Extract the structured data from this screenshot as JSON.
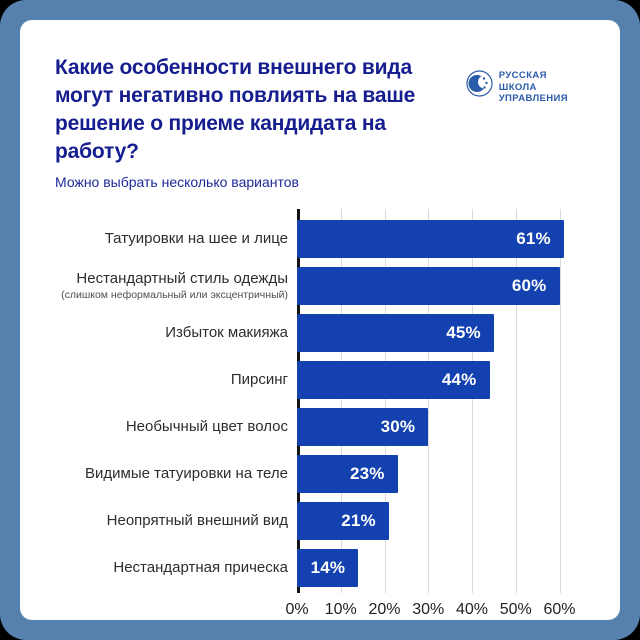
{
  "frame": {
    "border_color": "#5680ad",
    "card_color": "#ffffff"
  },
  "header": {
    "title_lines": [
      "Какие особенности внешнего вида",
      "могут негативно повлиять на ваше",
      "решение о приеме кандидата на работу?"
    ],
    "subtitle": "Можно выбрать несколько вариантов",
    "title_color": "#161e8f",
    "logo": {
      "lines": [
        "РУССКАЯ",
        "ШКОЛА",
        "УПРАВЛЕНИЯ"
      ],
      "color": "#2a5caa"
    }
  },
  "chart_data": {
    "type": "bar",
    "orientation": "horizontal",
    "title": "Какие особенности внешнего вида могут негативно повлиять на ваше решение о приеме кандидата на работу?",
    "subtitle": "Можно выбрать несколько вариантов",
    "categories": [
      "Татуировки на шее и лице",
      "Нестандартный стиль одежды",
      "Избыток макияжа",
      "Пирсинг",
      "Необычный цвет волос",
      "Видимые татуировки на теле",
      "Неопрятный внешний вид",
      "Нестандартная прическа"
    ],
    "category_notes": [
      "",
      "(слишком неформальный или эксцентричный)",
      "",
      "",
      "",
      "",
      "",
      ""
    ],
    "values": [
      61,
      60,
      45,
      44,
      30,
      23,
      21,
      14
    ],
    "value_labels": [
      "61%",
      "60%",
      "45%",
      "44%",
      "30%",
      "23%",
      "21%",
      "14%"
    ],
    "x_tick_values": [
      0,
      10,
      20,
      30,
      40,
      50,
      60
    ],
    "x_ticks": [
      "0%",
      "10%",
      "20%",
      "30%",
      "40%",
      "50%",
      "60%"
    ],
    "xlim": [
      0,
      64
    ],
    "bar_color": "#1341b0",
    "grid": true,
    "legend": false
  }
}
